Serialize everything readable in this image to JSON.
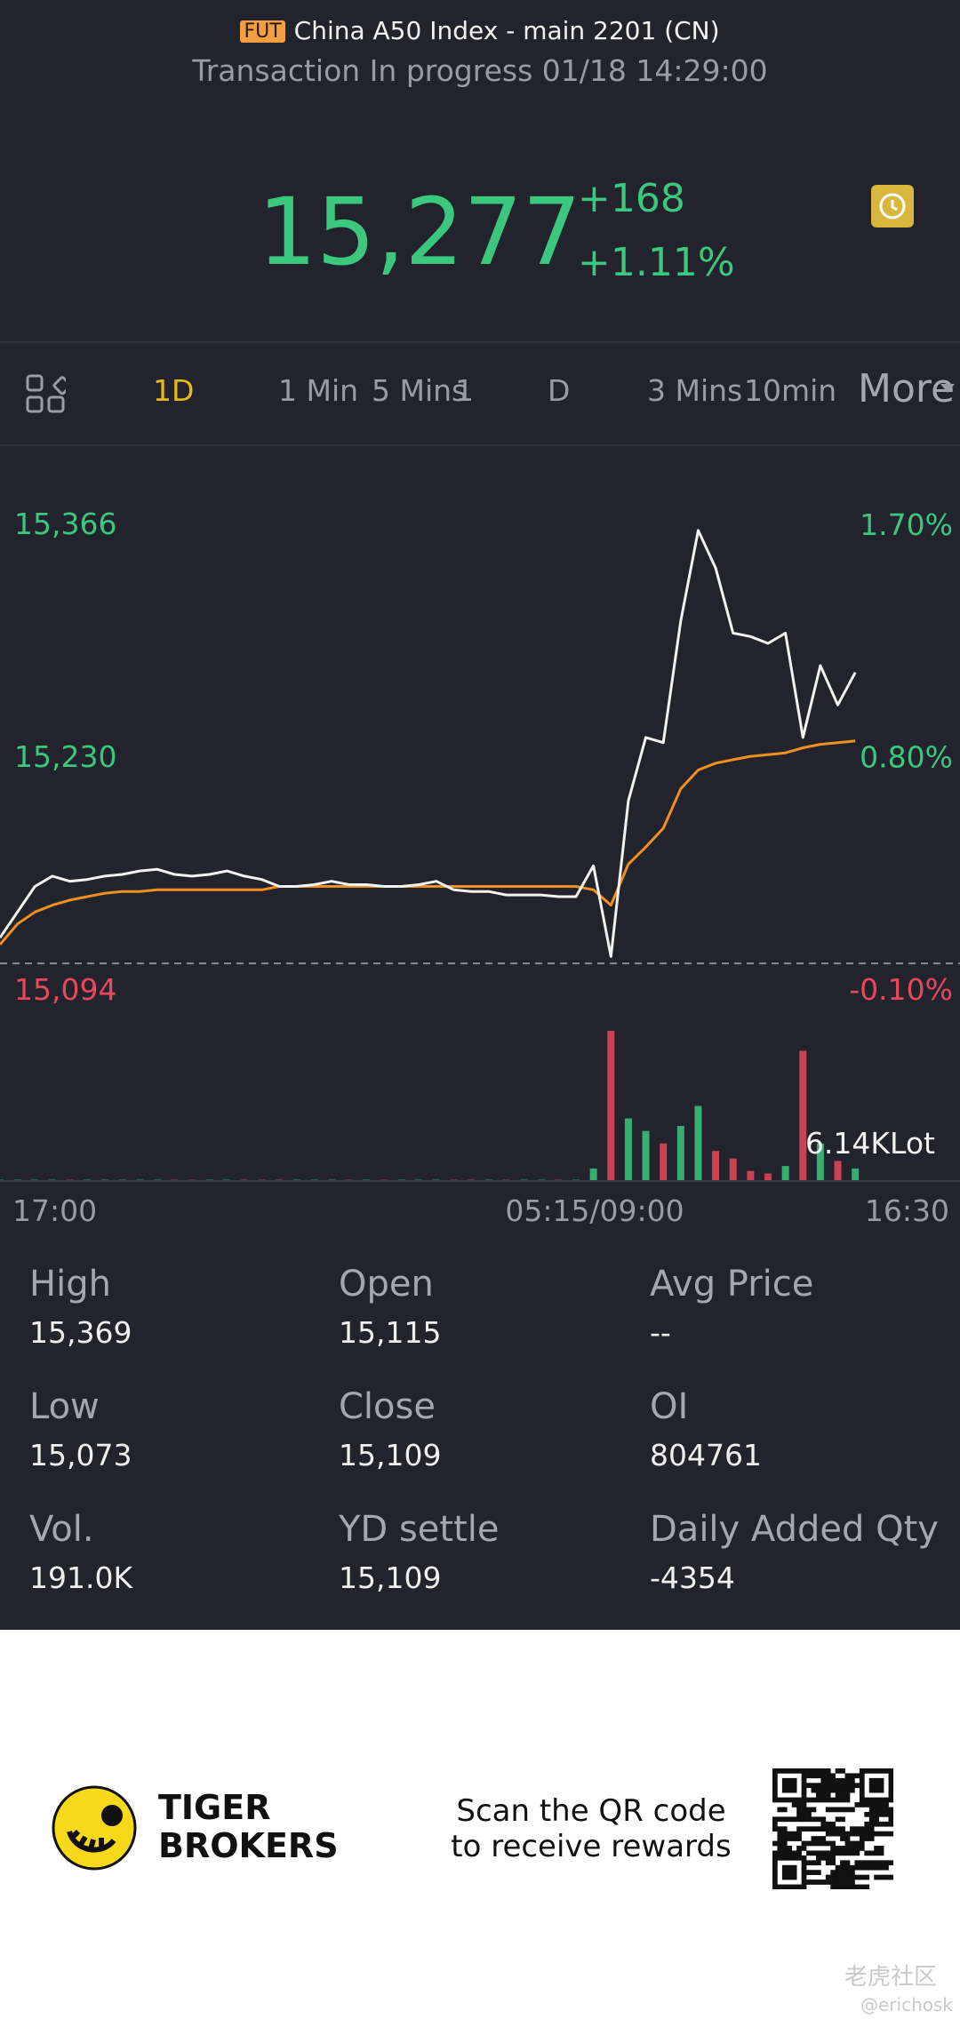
{
  "header": {
    "badge": "FUT",
    "title": "China A50 Index - main 2201 (CN)",
    "status": "Transaction In progress 01/18 14:29:00"
  },
  "quote": {
    "price": "15,277",
    "change": "+168",
    "change_pct": "+1.11%"
  },
  "tabs": [
    "1D",
    "1 Min",
    "5 Mins",
    "1",
    "D",
    "3 Mins",
    "10min",
    "More"
  ],
  "chart_data": {
    "type": "line",
    "ylim": [
      15094,
      15377
    ],
    "yticks": [
      {
        "value": 15366,
        "label": "15,366"
      },
      {
        "value": 15230,
        "label": "15,230"
      },
      {
        "value": 15094,
        "label": "15,094"
      }
    ],
    "y2lim": [
      -0.1,
      1.775
    ],
    "y2ticks": [
      {
        "value": 1.7,
        "label": "1.70%"
      },
      {
        "value": 0.8,
        "label": "0.80%"
      },
      {
        "value": -0.1,
        "label": "-0.10%"
      }
    ],
    "reference_line": 15109,
    "xlabels": [
      "17:00",
      "05:15/09:00",
      "16:30"
    ],
    "series": [
      {
        "name": "Price",
        "color": "#f2f2f2",
        "values": [
          15124,
          15139,
          15154,
          15160,
          15157,
          15158,
          15160,
          15161,
          15163,
          15164,
          15161,
          15160,
          15161,
          15163,
          15160,
          15158,
          15154,
          15154,
          15155,
          15157,
          15155,
          15155,
          15154,
          15154,
          15155,
          15157,
          15152,
          15151,
          15151,
          15149,
          15149,
          15149,
          15148,
          15148,
          15166,
          15113,
          15204,
          15241,
          15238,
          15309,
          15362,
          15340,
          15302,
          15300,
          15296,
          15302,
          15241,
          15283,
          15260,
          15279,
          null,
          null,
          null,
          null,
          null,
          null
        ]
      },
      {
        "name": "Avg",
        "color": "#f0901e",
        "values": [
          15120,
          15132,
          15139,
          15143,
          15146,
          15148,
          15150,
          15151,
          15151,
          15152,
          15152,
          15152,
          15152,
          15152,
          15152,
          15152,
          15154,
          15154,
          15154,
          15154,
          15154,
          15154,
          15154,
          15154,
          15154,
          15154,
          15154,
          15154,
          15154,
          15154,
          15154,
          15154,
          15154,
          15154,
          15152,
          15143,
          15167,
          15177,
          15188,
          15211,
          15222,
          15226,
          15228,
          15230,
          15231,
          15232,
          15235,
          15237,
          15238,
          15239,
          null,
          null,
          null,
          null,
          null,
          null
        ]
      }
    ],
    "up_color": "#3cc77f",
    "down_color": "#e8485c",
    "volume": {
      "label": "6.14KLot",
      "lim": [
        0,
        6140
      ],
      "values": [
        50,
        50,
        50,
        50,
        50,
        50,
        50,
        50,
        50,
        50,
        50,
        50,
        50,
        50,
        50,
        50,
        50,
        50,
        50,
        50,
        50,
        50,
        50,
        50,
        50,
        50,
        50,
        50,
        50,
        50,
        50,
        50,
        50,
        50,
        500,
        6000,
        2500,
        2000,
        1500,
        2200,
        3000,
        1200,
        900,
        400,
        300,
        600,
        5200,
        1500,
        800,
        500,
        null,
        null,
        null,
        null,
        null,
        null
      ]
    }
  },
  "stats": [
    {
      "label": "High",
      "value": "15,369"
    },
    {
      "label": "Open",
      "value": "15,115"
    },
    {
      "label": "Avg Price",
      "value": "--"
    },
    {
      "label": "Low",
      "value": "15,073"
    },
    {
      "label": "Close",
      "value": "15,109"
    },
    {
      "label": "OI",
      "value": "804761"
    },
    {
      "label": "Vol.",
      "value": "191.0K"
    },
    {
      "label": "YD settle",
      "value": "15,109"
    },
    {
      "label": "Daily Added Qty",
      "value": "-4354"
    }
  ],
  "footer": {
    "brand": [
      "TIGER",
      "BROKERS"
    ],
    "scan": [
      "Scan the QR code",
      "to receive rewards"
    ],
    "watermark": "老虎社区",
    "handle": "@erichosk"
  }
}
